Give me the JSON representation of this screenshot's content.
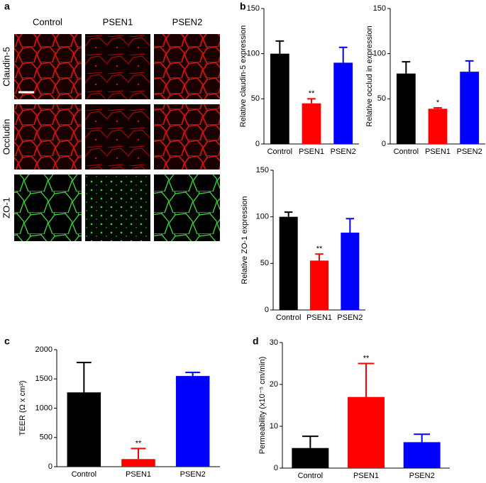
{
  "panel_labels": [
    "a",
    "b",
    "c",
    "d"
  ],
  "panel_a": {
    "columns": [
      "Control",
      "PSEN1",
      "PSEN2"
    ],
    "rows": [
      "Claudin-5",
      "Occludin",
      "ZO-1"
    ]
  },
  "chart_data": [
    {
      "type": "bar",
      "ylabel": "Relative claudin-5 expression",
      "categories": [
        "Control",
        "PSEN1",
        "PSEN2"
      ],
      "values": [
        100,
        45,
        90
      ],
      "errors": [
        14,
        5,
        17
      ],
      "colors": [
        "#000000",
        "#ff0000",
        "#0000ff"
      ],
      "ylim": [
        0,
        150
      ],
      "yticks": [
        0,
        50,
        100,
        150
      ],
      "annotation": {
        "text": "**",
        "category": "PSEN1"
      }
    },
    {
      "type": "bar",
      "ylabel": "Relative occlud in expression",
      "categories": [
        "Control",
        "PSEN1",
        "PSEN2"
      ],
      "values": [
        78,
        39,
        80
      ],
      "errors": [
        13,
        1,
        12
      ],
      "colors": [
        "#000000",
        "#ff0000",
        "#0000ff"
      ],
      "ylim": [
        0,
        150
      ],
      "yticks": [
        0,
        50,
        100,
        150
      ],
      "annotation": {
        "text": "*",
        "category": "PSEN1"
      }
    },
    {
      "type": "bar",
      "ylabel": "Relative ZO-1 expression",
      "categories": [
        "Control",
        "PSEN1",
        "PSEN2"
      ],
      "values": [
        100,
        53,
        83
      ],
      "errors": [
        5,
        7,
        15
      ],
      "colors": [
        "#000000",
        "#ff0000",
        "#0000ff"
      ],
      "ylim": [
        0,
        150
      ],
      "yticks": [
        0,
        50,
        100,
        150
      ],
      "annotation": {
        "text": "**",
        "category": "PSEN1"
      }
    },
    {
      "type": "bar",
      "ylabel": "TEER (Ω x cm²)",
      "categories": [
        "Control",
        "PSEN1",
        "PSEN2"
      ],
      "values": [
        1270,
        130,
        1550
      ],
      "errors": [
        510,
        180,
        60
      ],
      "colors": [
        "#000000",
        "#ff0000",
        "#0000ff"
      ],
      "ylim": [
        0,
        2000
      ],
      "yticks": [
        0,
        500,
        1000,
        1500,
        2000
      ],
      "annotation": {
        "text": "**",
        "category": "PSEN1"
      }
    },
    {
      "type": "bar",
      "ylabel": "Permeability (x10⁻⁵ cm/min)",
      "categories": [
        "Control",
        "PSEN1",
        "PSEN2"
      ],
      "values": [
        4.8,
        17,
        6.2
      ],
      "errors": [
        2.8,
        8,
        1.9
      ],
      "colors": [
        "#000000",
        "#ff0000",
        "#0000ff"
      ],
      "ylim": [
        0,
        30
      ],
      "yticks": [
        0,
        10,
        20,
        30
      ],
      "annotation": {
        "text": "**",
        "category": "PSEN1"
      }
    }
  ]
}
